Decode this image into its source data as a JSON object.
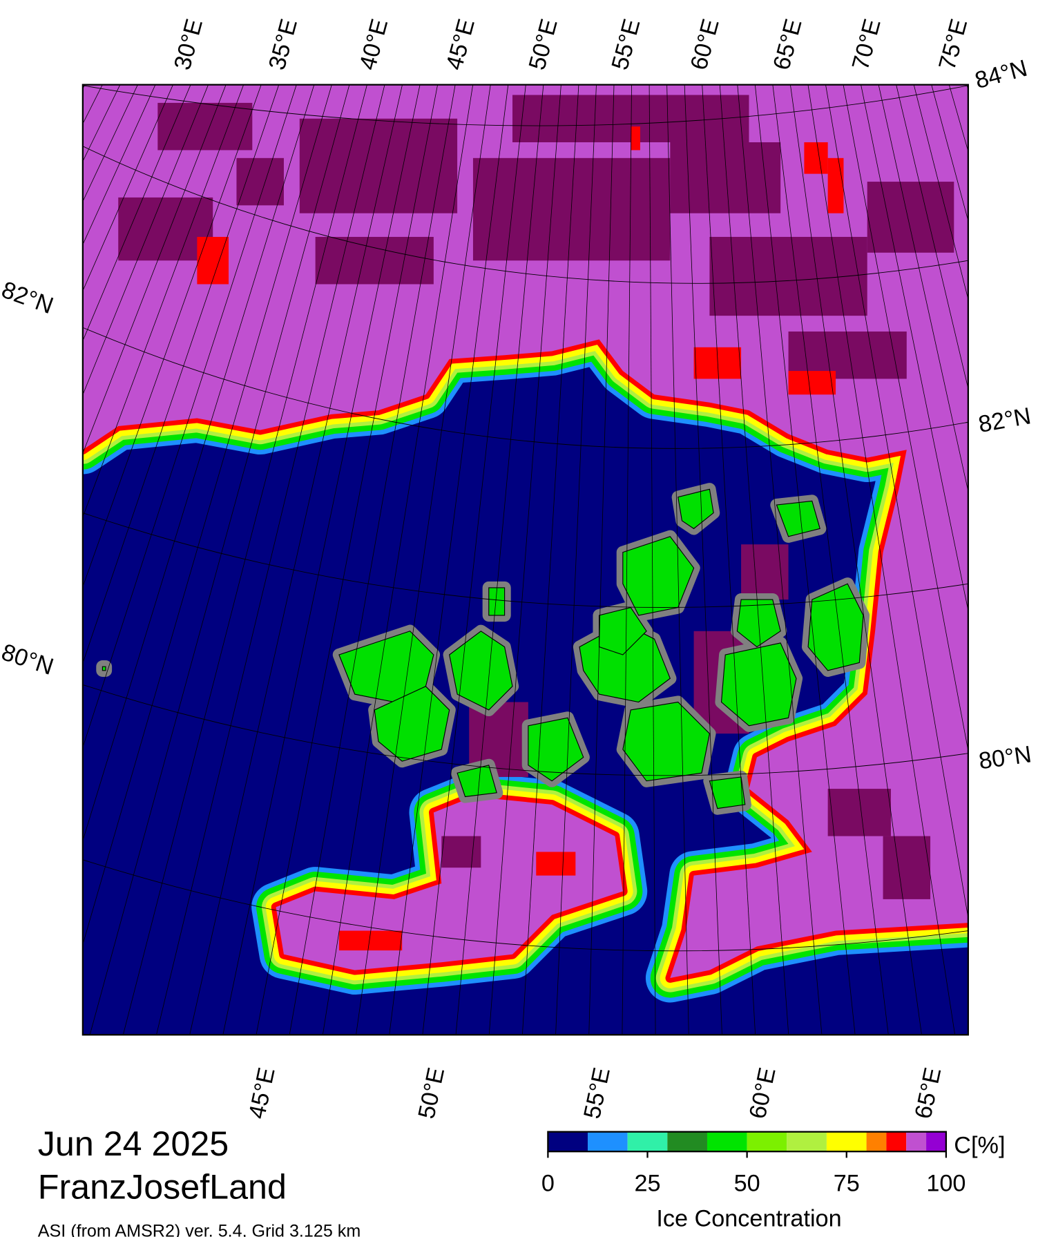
{
  "title": "Jun 24 2025",
  "region": "FranzJosefLand",
  "source": "ASI (from AMSR2) ver. 5.4,  Grid 3.125 km",
  "map": {
    "top_longitude_labels": [
      "30°E",
      "35°E",
      "40°E",
      "45°E",
      "50°E",
      "55°E",
      "60°E",
      "65°E",
      "70°E",
      "75°E"
    ],
    "bottom_longitude_labels": [
      "45°E",
      "50°E",
      "55°E",
      "60°E",
      "65°E"
    ],
    "left_latitude_labels": [
      "82°N",
      "80°N"
    ],
    "right_latitude_labels": [
      "84°N",
      "82°N",
      "80°N"
    ]
  },
  "colorbar": {
    "label": "C[%]",
    "title": "Ice Concentration",
    "xlim": [
      0,
      100
    ],
    "bins": [
      0,
      10,
      20,
      30,
      40,
      50,
      60,
      70,
      80,
      85,
      90,
      95,
      100
    ],
    "colors": [
      "#000080",
      "#1e90ff",
      "#30f0a8",
      "#228b22",
      "#00e400",
      "#7cf000",
      "#b0f040",
      "#ffff00",
      "#ff8000",
      "#ff0000",
      "#c050d0",
      "#9400d3"
    ],
    "ticks": [
      0,
      25,
      50,
      75,
      100
    ]
  }
}
